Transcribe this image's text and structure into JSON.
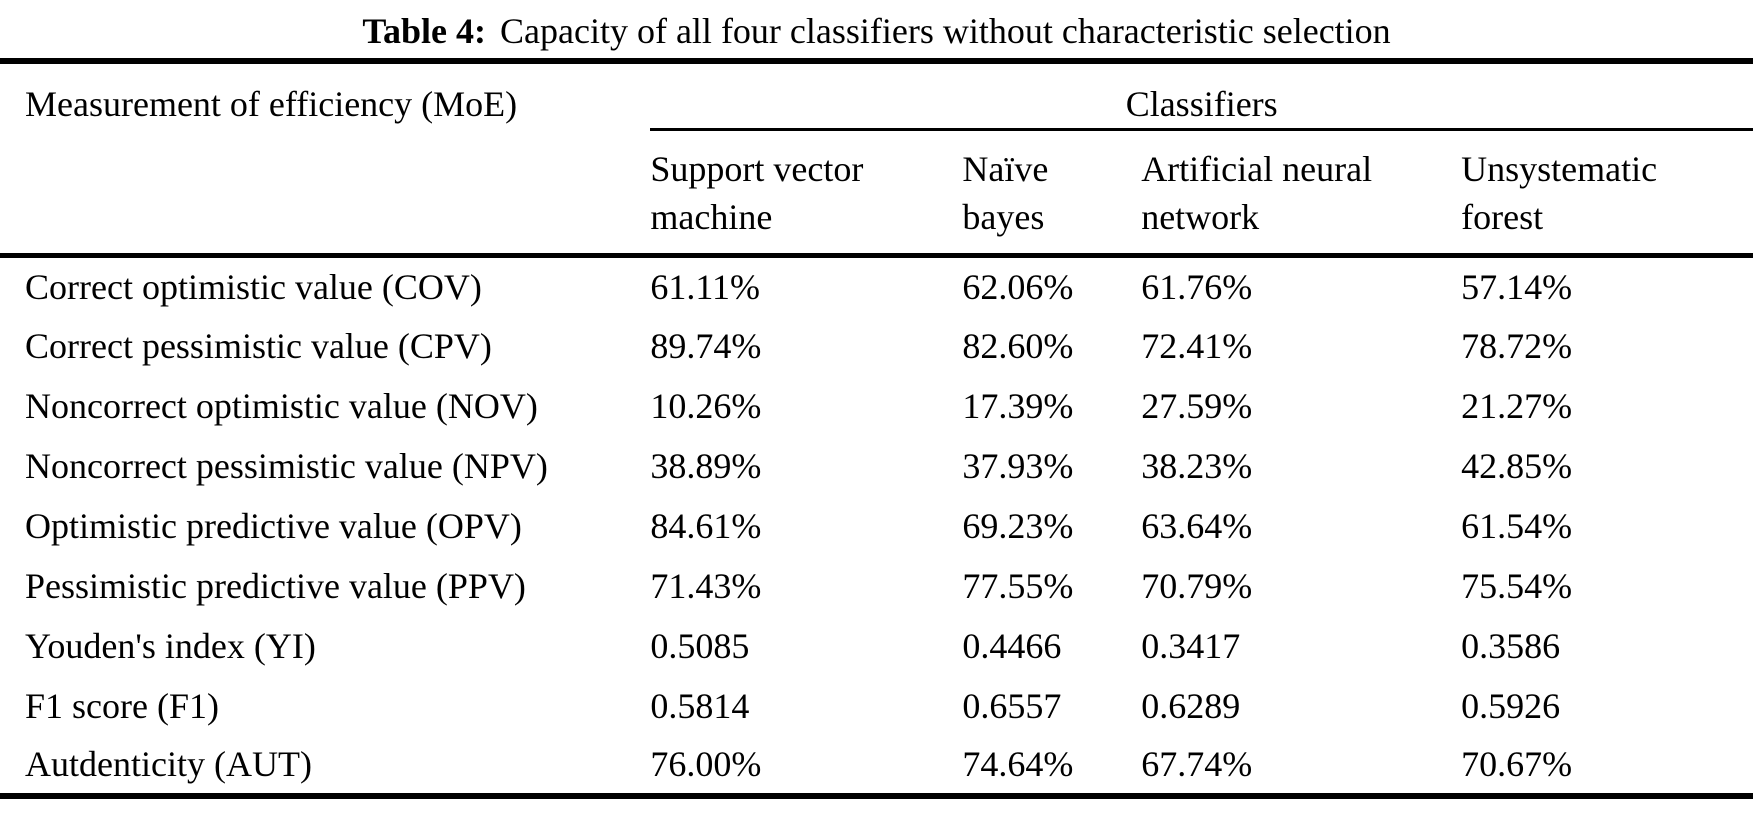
{
  "page": {
    "background_color": "#ffffff",
    "text_color": "#000000",
    "rule_color": "#000000"
  },
  "title": {
    "label": "Table 4:",
    "text": "Capacity of all four classifiers without characteristic selection"
  },
  "table": {
    "moe_header": "Measurement of efficiency (MoE)",
    "group_header": "Classifiers",
    "columns": [
      "Support vector machine",
      "Naïve bayes",
      "Artificial neural network",
      "Unsystematic forest"
    ],
    "rows": [
      {
        "label": "Correct optimistic value (COV)",
        "values": [
          "61.11%",
          "62.06%",
          "61.76%",
          "57.14%"
        ]
      },
      {
        "label": "Correct pessimistic value (CPV)",
        "values": [
          "89.74%",
          "82.60%",
          "72.41%",
          "78.72%"
        ]
      },
      {
        "label": "Noncorrect optimistic value (NOV)",
        "values": [
          "10.26%",
          "17.39%",
          "27.59%",
          "21.27%"
        ]
      },
      {
        "label": "Noncorrect pessimistic value (NPV)",
        "values": [
          "38.89%",
          "37.93%",
          "38.23%",
          "42.85%"
        ]
      },
      {
        "label": "Optimistic predictive value (OPV)",
        "values": [
          "84.61%",
          "69.23%",
          "63.64%",
          "61.54%"
        ]
      },
      {
        "label": "Pessimistic predictive value (PPV)",
        "values": [
          "71.43%",
          "77.55%",
          "70.79%",
          "75.54%"
        ]
      },
      {
        "label": "Youden's index (YI)",
        "values": [
          "0.5085",
          "0.4466",
          "0.3417",
          "0.3586"
        ]
      },
      {
        "label": "F1 score (F1)",
        "values": [
          "0.5814",
          "0.6557",
          "0.6289",
          "0.5926"
        ]
      },
      {
        "label": "Autdenticity (AUT)",
        "values": [
          "76.00%",
          "74.64%",
          "67.74%",
          "70.67%"
        ]
      }
    ]
  }
}
